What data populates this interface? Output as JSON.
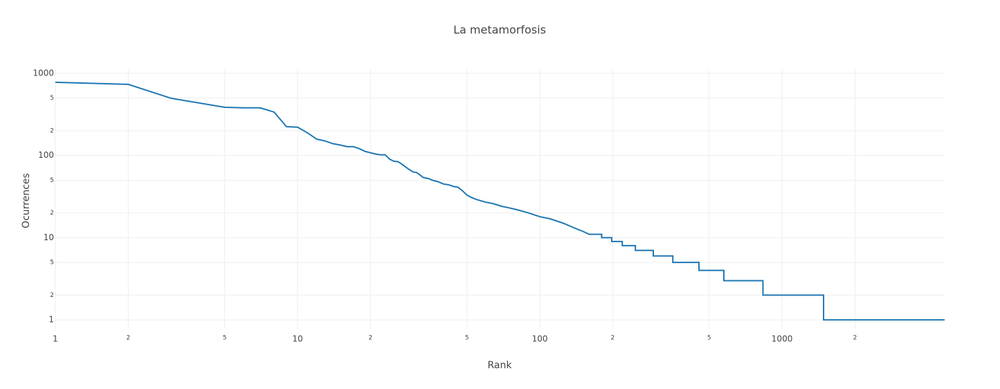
{
  "chart_data": {
    "type": "line",
    "title": "La metamorfosis",
    "x_label": "Rank",
    "y_label": "Ocurrences",
    "x": [
      1,
      2,
      3,
      5,
      6,
      7,
      8,
      9,
      10,
      11,
      12,
      13,
      14,
      15,
      16,
      17,
      18,
      19,
      20,
      21,
      22,
      23,
      24,
      25,
      26,
      27,
      28,
      29,
      30,
      31,
      32,
      33,
      34,
      35,
      36,
      38,
      40,
      42,
      44,
      46,
      48,
      50,
      52,
      55,
      60,
      64,
      70,
      75,
      80,
      90,
      100,
      110,
      125,
      140,
      150,
      160,
      180,
      180,
      198,
      198,
      219,
      219,
      248,
      248,
      294,
      294,
      354,
      354,
      454,
      454,
      575,
      575,
      834,
      834,
      1484,
      1484,
      4690
    ],
    "values": [
      777,
      733,
      497,
      386,
      380,
      380,
      337,
      224,
      221,
      188,
      158,
      150,
      139,
      134,
      128,
      128,
      121,
      112,
      108,
      104,
      102,
      102,
      90,
      85,
      84,
      78,
      72,
      67,
      63,
      62,
      58,
      54,
      53,
      52,
      50,
      48,
      45,
      44,
      42,
      41,
      37,
      33,
      31,
      29,
      27,
      26,
      24,
      23,
      22,
      20,
      18,
      17,
      15,
      13,
      12,
      11,
      11,
      10,
      10,
      9,
      9,
      8,
      8,
      7,
      7,
      6,
      6,
      5,
      5,
      4,
      4,
      3,
      3,
      2,
      2,
      1,
      1
    ],
    "color": "#1f77b4",
    "xlog": true,
    "ylog": true,
    "grid": true,
    "xlim": [
      1,
      4690
    ],
    "ylim": [
      0.78,
      1120
    ],
    "xticks": [
      1,
      2,
      5,
      10,
      {
        "value": 20,
        "label": "2"
      },
      {
        "value": 50,
        "label": "5"
      },
      100,
      {
        "value": 200,
        "label": "2"
      },
      {
        "value": 500,
        "label": "5"
      },
      1000,
      {
        "value": 2000,
        "label": "2"
      }
    ],
    "yticks": [
      1,
      2,
      5,
      10,
      {
        "value": 20,
        "label": "2"
      },
      {
        "value": 50,
        "label": "5"
      },
      100,
      {
        "value": 200,
        "label": "2"
      },
      {
        "value": 500,
        "label": "5"
      },
      1000
    ]
  }
}
